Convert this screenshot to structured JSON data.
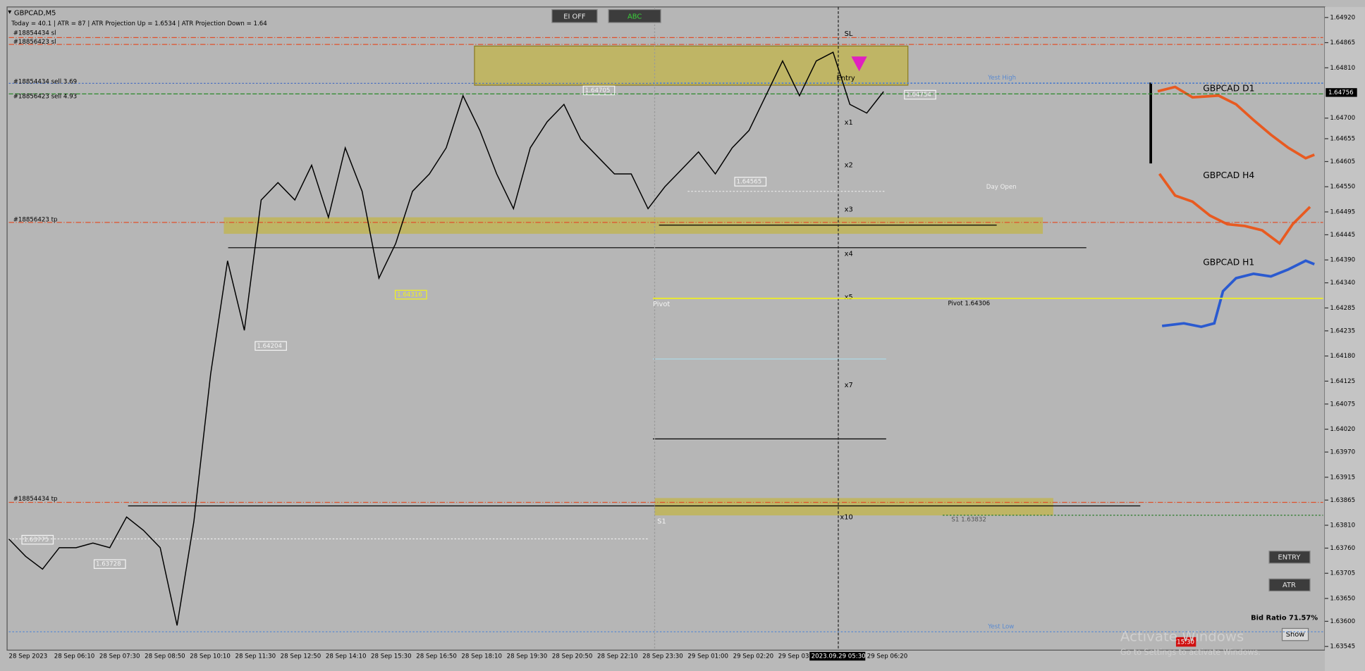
{
  "chart_data": {
    "type": "line",
    "series": [
      {
        "name": "GBPCAD,M5",
        "color": "#000000",
        "values": [
          1.6378,
          1.63742,
          1.63714,
          1.63761,
          1.63761,
          1.63771,
          1.63761,
          1.63828,
          1.63799,
          1.63761,
          1.63591,
          1.63818,
          1.64141,
          1.64388,
          1.64236,
          1.64521,
          1.64559,
          1.64521,
          1.64597,
          1.64483,
          1.64635,
          1.6454,
          1.6435,
          1.64426,
          1.6454,
          1.64578,
          1.64635,
          1.64749,
          1.64673,
          1.64578,
          1.64502,
          1.64635,
          1.64692,
          1.6473,
          1.64654,
          1.64616,
          1.64578,
          1.64578,
          1.64502,
          1.6455,
          1.64588,
          1.64626,
          1.64578,
          1.64635,
          1.64673,
          1.64749,
          1.64825,
          1.64749,
          1.64825,
          1.64844,
          1.6473,
          1.64711,
          1.64758
        ]
      }
    ],
    "ylim": [
      1.63537,
      1.64943
    ],
    "yticks": [
      {
        "value": 1.6492,
        "label": "1.64920"
      },
      1.64865,
      {
        "value": 1.6481,
        "label": "1.64810"
      },
      {
        "value": 1.647,
        "label": "1.64700"
      },
      1.64655,
      1.64605,
      {
        "value": 1.6455,
        "label": "1.64550"
      },
      1.64495,
      1.64445,
      {
        "value": 1.6439,
        "label": "1.64390"
      },
      {
        "value": 1.6434,
        "label": "1.64340"
      },
      1.64285,
      1.64235,
      {
        "value": 1.6418,
        "label": "1.64180"
      },
      1.64125,
      1.64075,
      {
        "value": 1.6402,
        "label": "1.64020"
      },
      {
        "value": 1.6397,
        "label": "1.63970"
      },
      1.63915,
      1.63865,
      {
        "value": 1.6381,
        "label": "1.63810"
      },
      {
        "value": 1.6376,
        "label": "1.63760"
      },
      1.63705,
      {
        "value": 1.6365,
        "label": "1.63650"
      },
      {
        "value": 1.636,
        "label": "1.63600"
      },
      1.63545
    ],
    "current_price": 1.64756,
    "time_labels": [
      "28 Sep 2023",
      "28 Sep 06:10",
      "28 Sep 07:30",
      "28 Sep 08:50",
      "28 Sep 10:10",
      "28 Sep 11:30",
      "28 Sep 12:50",
      "28 Sep 14:10",
      "28 Sep 15:30",
      "28 Sep 16:50",
      "28 Sep 18:10",
      "28 Sep 19:30",
      "28 Sep 20:50",
      "28 Sep 22:10",
      "28 Sep 23:30",
      "29 Sep 01:00",
      "29 Sep 02:20",
      "29 Sep 03:4"
    ],
    "cursor_time": "2023.09.29 05:30",
    "last_time": "29 Sep 06:20",
    "levels": [
      {
        "label": "#18854434 sl",
        "value": 1.64876,
        "color": "#e0502a"
      },
      {
        "label": "#18856423 sl",
        "value": 1.64861,
        "color": "#e0502a"
      },
      {
        "label": "#18854434 sell 3.69",
        "value": 1.64776,
        "color": "#4a6fc0"
      },
      {
        "label": "#18856423 sell 4.93",
        "value": 1.64753,
        "color": "#2a8a2a"
      },
      {
        "label": "#18856423 tp",
        "value": 1.64472,
        "color": "#e0502a"
      },
      {
        "label": "#18854434 tp",
        "value": 1.6386,
        "color": "#e0502a"
      },
      {
        "label": "Yest High",
        "value": 1.64777,
        "color": "#5a8ad0"
      },
      {
        "label": "Day Open",
        "value": 1.6454,
        "color": "#e8e8e8"
      },
      {
        "label": "Pivot 1.64306",
        "value": 1.64306,
        "color": "#f0f020"
      },
      {
        "label": "S1 1.63832",
        "value": 1.63832,
        "color": "#2a7a2a"
      },
      {
        "label": "Yest Low",
        "value": 1.63577,
        "color": "#5a8ad0"
      }
    ]
  },
  "header": {
    "symbol": "GBPCAD,M5",
    "info": "Today = 40.1  |  ATR = 87  |  ATR Projection Up = 1.6534  |  ATR Projection Down = 1.64"
  },
  "buttons": {
    "ei": "EI OFF",
    "abc": "ABC",
    "entry": "ENTRY",
    "atr": "ATR",
    "show": "Show"
  },
  "price_labels": [
    1.64316,
    1.64204,
    1.63775,
    1.63728,
    1.64565,
    1.64705,
    1.64754
  ],
  "markers": {
    "sl": "SL",
    "entry": "Entry",
    "x1": "x1",
    "x2": "x2",
    "x3": "x3",
    "x4": "x4",
    "x5": "x5",
    "x7": "x7",
    "x10": "x10",
    "pivot": "Pivot",
    "s1": "S1"
  },
  "mini_charts": [
    "GBPCAD D1",
    "GBPCAD H4",
    "GBPCAD H1"
  ],
  "bid_ratio": "Bid Ratio 71.57%",
  "clock": "15:30",
  "watermark": {
    "title": "Activate Windows",
    "text": "Go to Settings to activate Windows."
  }
}
